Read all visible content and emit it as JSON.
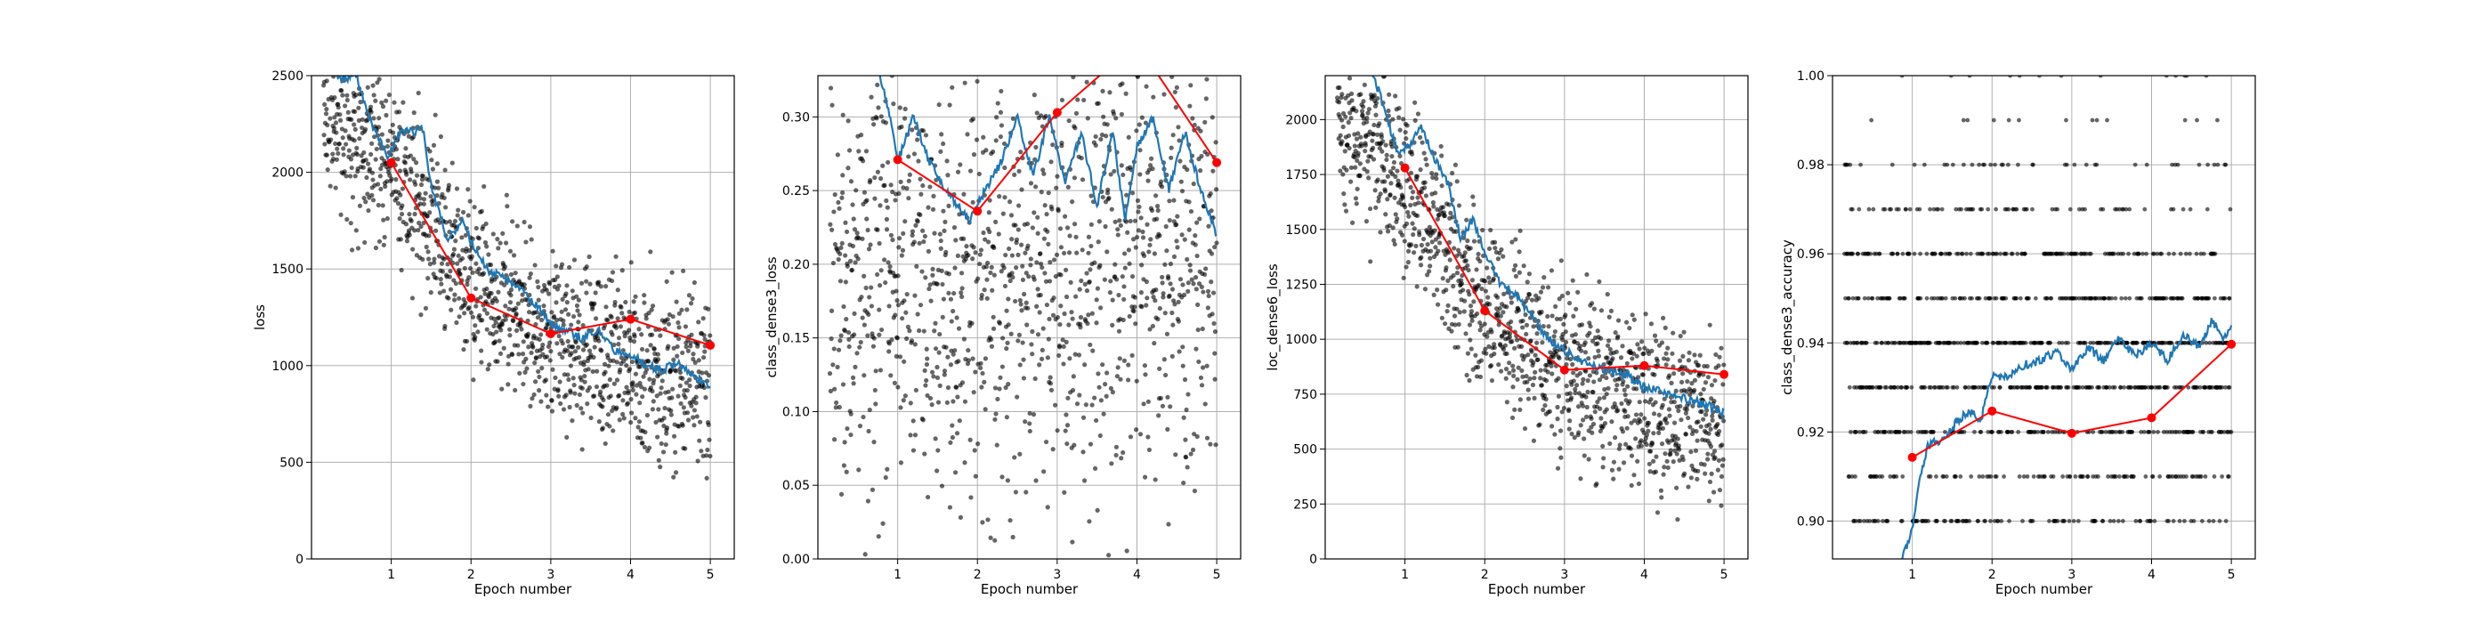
{
  "colors": {
    "scatter": "#000000",
    "smoothed_line": "#1f77b4",
    "epoch_line": "#ff0000",
    "grid": "#b0b0b0",
    "axis": "#000000"
  },
  "chart_data": [
    {
      "type": "line",
      "xlabel": "Epoch number",
      "ylabel": "loss",
      "xlim": [
        0,
        5.3
      ],
      "ylim": [
        0,
        2500
      ],
      "xticks": [
        1,
        2,
        3,
        4,
        5
      ],
      "yticks": [
        0,
        500,
        1000,
        1500,
        2000,
        2500
      ],
      "tick_format": "int",
      "grid": true,
      "scatter": {
        "n": 1250,
        "x_range": [
          0.15,
          5.0
        ],
        "trend": [
          [
            0.15,
            2350
          ],
          [
            1,
            2050
          ],
          [
            2,
            1450
          ],
          [
            3,
            1150
          ],
          [
            4,
            1000
          ],
          [
            5,
            880
          ]
        ],
        "noise": 220,
        "seed": 11
      },
      "smoothed_series": [
        [
          0.15,
          2580
        ],
        [
          0.4,
          2470
        ],
        [
          0.55,
          2520
        ],
        [
          0.7,
          2300
        ],
        [
          0.95,
          2080
        ],
        [
          1.1,
          2200
        ],
        [
          1.4,
          2220
        ],
        [
          1.5,
          1930
        ],
        [
          1.7,
          1660
        ],
        [
          1.9,
          1740
        ],
        [
          2.0,
          1640
        ],
        [
          2.2,
          1500
        ],
        [
          2.4,
          1450
        ],
        [
          2.6,
          1400
        ],
        [
          2.8,
          1320
        ],
        [
          3.0,
          1220
        ],
        [
          3.2,
          1180
        ],
        [
          3.4,
          1140
        ],
        [
          3.6,
          1180
        ],
        [
          3.8,
          1080
        ],
        [
          4.0,
          1060
        ],
        [
          4.2,
          1000
        ],
        [
          4.4,
          980
        ],
        [
          4.6,
          1010
        ],
        [
          4.8,
          940
        ],
        [
          5.0,
          900
        ]
      ],
      "epoch_series": {
        "x": [
          1,
          2,
          3,
          4,
          5
        ],
        "y": [
          2050,
          1350,
          1165,
          1240,
          1105
        ]
      }
    },
    {
      "type": "line",
      "xlabel": "Epoch number",
      "ylabel": "class_dense3_loss",
      "xlim": [
        0,
        5.3
      ],
      "ylim": [
        0,
        0.328
      ],
      "xticks": [
        1,
        2,
        3,
        4,
        5
      ],
      "yticks": [
        0.0,
        0.05,
        0.1,
        0.15,
        0.2,
        0.25,
        0.3
      ],
      "tick_format": "2dp",
      "grid": true,
      "scatter": {
        "n": 1250,
        "x_range": [
          0.15,
          5.0
        ],
        "trend": [
          [
            0.15,
            0.2
          ],
          [
            5,
            0.2
          ]
        ],
        "noise": 0.075,
        "seed": 23
      },
      "smoothed_series": [
        [
          0.75,
          0.335
        ],
        [
          0.9,
          0.3
        ],
        [
          1.0,
          0.27
        ],
        [
          1.2,
          0.3
        ],
        [
          1.4,
          0.27
        ],
        [
          1.6,
          0.25
        ],
        [
          1.9,
          0.23
        ],
        [
          2.1,
          0.25
        ],
        [
          2.3,
          0.27
        ],
        [
          2.5,
          0.3
        ],
        [
          2.7,
          0.26
        ],
        [
          2.9,
          0.3
        ],
        [
          3.1,
          0.255
        ],
        [
          3.3,
          0.29
        ],
        [
          3.5,
          0.24
        ],
        [
          3.7,
          0.29
        ],
        [
          3.85,
          0.23
        ],
        [
          4.0,
          0.28
        ],
        [
          4.2,
          0.3
        ],
        [
          4.4,
          0.25
        ],
        [
          4.6,
          0.29
        ],
        [
          4.8,
          0.25
        ],
        [
          5.0,
          0.22
        ]
      ],
      "epoch_series": {
        "x": [
          1,
          2,
          3,
          4,
          5
        ],
        "y": [
          0.271,
          0.236,
          0.303,
          0.35,
          0.269
        ]
      }
    },
    {
      "type": "line",
      "xlabel": "Epoch number",
      "ylabel": "loc_dense6_loss",
      "xlim": [
        0,
        5.3
      ],
      "ylim": [
        0,
        2200
      ],
      "xticks": [
        1,
        2,
        3,
        4,
        5
      ],
      "yticks": [
        0,
        250,
        500,
        750,
        1000,
        1250,
        1500,
        1750,
        2000
      ],
      "tick_format": "int",
      "grid": true,
      "scatter": {
        "n": 1250,
        "x_range": [
          0.15,
          5.0
        ],
        "trend": [
          [
            0.15,
            2000
          ],
          [
            1,
            1700
          ],
          [
            2,
            1150
          ],
          [
            3,
            850
          ],
          [
            4,
            720
          ],
          [
            5,
            620
          ]
        ],
        "noise": 190,
        "seed": 37
      },
      "smoothed_series": [
        [
          0.5,
          2300
        ],
        [
          0.7,
          2100
        ],
        [
          0.9,
          1850
        ],
        [
          1.1,
          1900
        ],
        [
          1.2,
          1970
        ],
        [
          1.4,
          1800
        ],
        [
          1.55,
          1700
        ],
        [
          1.7,
          1450
        ],
        [
          1.85,
          1550
        ],
        [
          2.0,
          1400
        ],
        [
          2.2,
          1250
        ],
        [
          2.4,
          1200
        ],
        [
          2.6,
          1100
        ],
        [
          2.8,
          1000
        ],
        [
          3.0,
          950
        ],
        [
          3.2,
          900
        ],
        [
          3.4,
          870
        ],
        [
          3.6,
          860
        ],
        [
          3.8,
          830
        ],
        [
          4.0,
          780
        ],
        [
          4.2,
          760
        ],
        [
          4.4,
          740
        ],
        [
          4.6,
          720
        ],
        [
          4.8,
          700
        ],
        [
          5.0,
          660
        ]
      ],
      "epoch_series": {
        "x": [
          1,
          2,
          3,
          4,
          5
        ],
        "y": [
          1780,
          1130,
          860,
          880,
          840
        ]
      }
    },
    {
      "type": "line",
      "xlabel": "Epoch number",
      "ylabel": "class_dense3_accuracy",
      "xlim": [
        0,
        5.3
      ],
      "ylim": [
        0.8915,
        1.0
      ],
      "xticks": [
        1,
        2,
        3,
        4,
        5
      ],
      "yticks": [
        0.9,
        0.92,
        0.94,
        0.96,
        0.98,
        1.0
      ],
      "tick_format": "2dp",
      "grid": true,
      "scatter": {
        "levels": [
          0.9,
          0.91,
          0.92,
          0.93,
          0.94,
          0.95,
          0.96,
          0.97,
          0.98,
          0.99,
          1.0
        ],
        "level_weights": [
          10,
          12,
          18,
          22,
          24,
          20,
          14,
          9,
          5,
          2,
          1
        ],
        "n": 1250,
        "x_range": [
          0.15,
          5.0
        ],
        "seed": 53
      },
      "smoothed_series": [
        [
          0.8,
          0.885
        ],
        [
          0.9,
          0.893
        ],
        [
          1.0,
          0.898
        ],
        [
          1.1,
          0.91
        ],
        [
          1.2,
          0.917
        ],
        [
          1.35,
          0.918
        ],
        [
          1.5,
          0.921
        ],
        [
          1.6,
          0.923
        ],
        [
          1.75,
          0.925
        ],
        [
          1.85,
          0.922
        ],
        [
          2.0,
          0.933
        ],
        [
          2.2,
          0.932
        ],
        [
          2.4,
          0.935
        ],
        [
          2.6,
          0.936
        ],
        [
          2.8,
          0.938
        ],
        [
          3.0,
          0.934
        ],
        [
          3.2,
          0.939
        ],
        [
          3.4,
          0.936
        ],
        [
          3.6,
          0.941
        ],
        [
          3.8,
          0.937
        ],
        [
          4.0,
          0.94
        ],
        [
          4.2,
          0.936
        ],
        [
          4.4,
          0.942
        ],
        [
          4.6,
          0.939
        ],
        [
          4.75,
          0.945
        ],
        [
          4.9,
          0.941
        ],
        [
          5.0,
          0.944
        ]
      ],
      "epoch_series": {
        "x": [
          1,
          2,
          3,
          4,
          5
        ],
        "y": [
          0.9143,
          0.9247,
          0.9197,
          0.9232,
          0.9397
        ]
      }
    }
  ]
}
